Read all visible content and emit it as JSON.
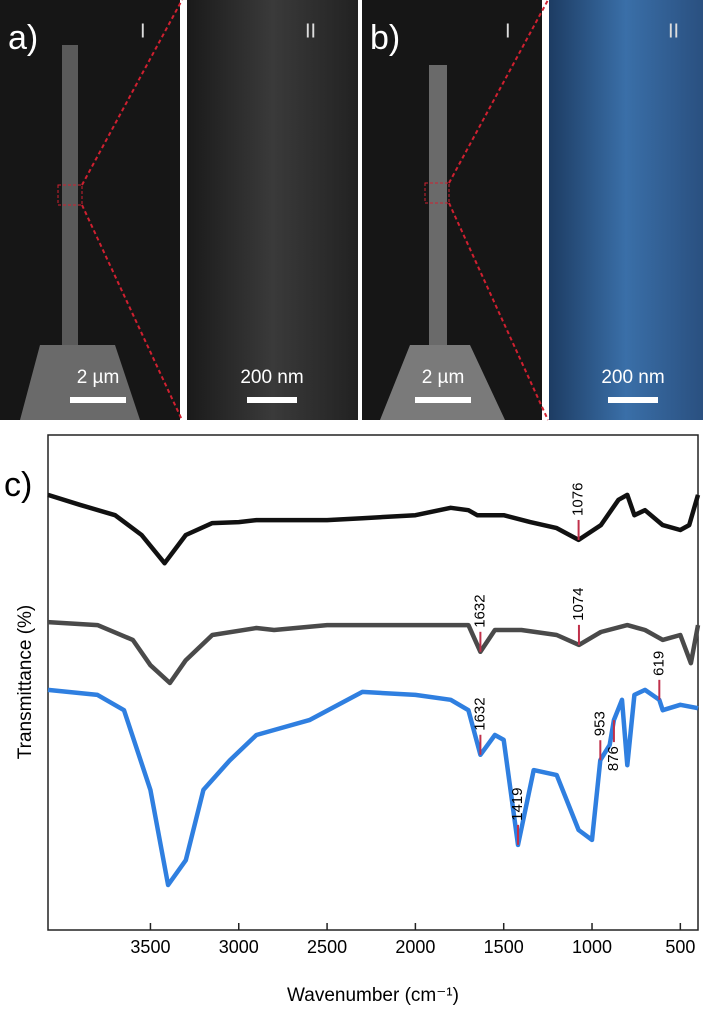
{
  "panels": [
    {
      "label": "a)",
      "images": [
        {
          "label": "I",
          "scale": "2 µm"
        },
        {
          "label": "II",
          "scale": "200 nm"
        }
      ]
    },
    {
      "label": "b)",
      "images": [
        {
          "label": "I",
          "scale": "2 µm"
        },
        {
          "label": "II",
          "scale": "200 nm"
        }
      ]
    }
  ],
  "chart_data": {
    "type": "line",
    "panel_label": "c)",
    "xlabel": "Wavenumber (cm⁻¹)",
    "ylabel": "Transmittance (%)",
    "xlim": [
      4080,
      400
    ],
    "ylim": [
      0,
      100
    ],
    "xticks": [
      3500,
      3000,
      2500,
      2000,
      1500,
      1000,
      500
    ],
    "series": [
      {
        "color": "#111111",
        "x": [
          4080,
          3900,
          3700,
          3550,
          3420,
          3300,
          3150,
          3000,
          2900,
          2700,
          2500,
          2300,
          2000,
          1800,
          1700,
          1650,
          1500,
          1350,
          1200,
          1076,
          950,
          850,
          800,
          760,
          700,
          600,
          500,
          450,
          400
        ],
        "values": [
          87.9,
          85.9,
          83.8,
          79.8,
          74.1,
          79.8,
          82.2,
          82.4,
          82.8,
          82.8,
          82.8,
          83.2,
          83.8,
          85.3,
          84.8,
          83.8,
          83.8,
          82.4,
          81.2,
          78.8,
          81.8,
          86.9,
          87.9,
          83.8,
          84.8,
          81.8,
          80.8,
          81.8,
          87.9
        ]
      },
      {
        "color": "#4a4a4a",
        "x": [
          4080,
          3800,
          3600,
          3500,
          3390,
          3300,
          3150,
          2900,
          2800,
          2500,
          2000,
          1700,
          1632,
          1550,
          1400,
          1200,
          1074,
          950,
          800,
          700,
          600,
          500,
          440,
          400
        ],
        "values": [
          62.2,
          61.6,
          58.6,
          53.5,
          49.9,
          54.5,
          59.6,
          61.0,
          60.6,
          61.6,
          61.6,
          61.6,
          56.2,
          60.6,
          60.6,
          59.6,
          57.6,
          60.2,
          61.6,
          60.6,
          58.6,
          59.6,
          53.9,
          61.6
        ]
      },
      {
        "color": "#2f7fe0",
        "x": [
          4080,
          3800,
          3650,
          3500,
          3400,
          3300,
          3200,
          3050,
          2900,
          2800,
          2600,
          2300,
          2000,
          1800,
          1700,
          1632,
          1550,
          1500,
          1419,
          1330,
          1200,
          1076,
          1000,
          953,
          900,
          876,
          830,
          800,
          760,
          700,
          619,
          600,
          500,
          400
        ],
        "values": [
          48.5,
          47.5,
          44.4,
          28.3,
          9.1,
          14.1,
          28.3,
          34.3,
          39.4,
          40.4,
          42.4,
          48.1,
          47.5,
          46.5,
          44.4,
          35.4,
          39.4,
          38.4,
          17.2,
          32.3,
          31.3,
          20.2,
          18.2,
          34.3,
          37.4,
          42.4,
          46.5,
          33.3,
          47.5,
          48.5,
          46.5,
          44.4,
          45.5,
          44.8
        ]
      }
    ],
    "annotations": [
      {
        "label": "1076",
        "x": 1076,
        "y": 78.8
      },
      {
        "label": "1632",
        "x": 1632,
        "y": 56.2
      },
      {
        "label": "1074",
        "x": 1074,
        "y": 57.6
      },
      {
        "label": "1632",
        "x": 1632,
        "y": 35.4
      },
      {
        "label": "1419",
        "x": 1419,
        "y": 17.2
      },
      {
        "label": "953",
        "x": 953,
        "y": 34.3
      },
      {
        "label": "876",
        "x": 876,
        "y": 42.4
      },
      {
        "label": "619",
        "x": 619,
        "y": 46.5
      }
    ]
  }
}
